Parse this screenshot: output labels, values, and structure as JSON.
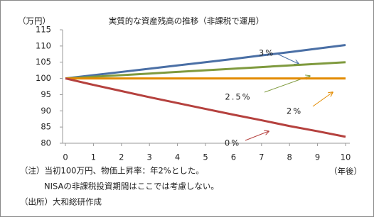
{
  "chart_data": {
    "type": "line",
    "title": "実質的な資産残高の推移（非課税で運用）",
    "y_label": "（万円）",
    "x_label": "（年後）",
    "x": [
      0,
      1,
      2,
      3,
      4,
      5,
      6,
      7,
      8,
      9,
      10
    ],
    "xlim": [
      0,
      10
    ],
    "xticks": [
      0,
      1,
      2,
      3,
      4,
      5,
      6,
      7,
      8,
      9,
      10
    ],
    "ylim": [
      80,
      115
    ],
    "yticks": [
      80,
      85,
      90,
      95,
      100,
      105,
      110,
      115
    ],
    "series": [
      {
        "name": "3%",
        "color": "#4a6fa5",
        "label_color": "#4f86c6",
        "values": [
          100,
          101.0,
          102.0,
          103.0,
          104.0,
          105.0,
          106.0,
          107.1,
          108.1,
          109.2,
          110.3
        ]
      },
      {
        "name": "2.5%",
        "color": "#7f9a3e",
        "label_color": "#333333",
        "values": [
          100,
          100.5,
          101.0,
          101.5,
          102.0,
          102.5,
          103.0,
          103.5,
          104.0,
          104.5,
          105.0
        ]
      },
      {
        "name": "2%",
        "color": "#e38b00",
        "label_color": "#b36b00",
        "values": [
          100,
          100,
          100,
          100,
          100,
          100,
          100,
          100,
          100,
          100,
          100
        ]
      },
      {
        "name": "0%",
        "color": "#b5413e",
        "label_color": "#b5413e",
        "values": [
          100,
          98.0,
          96.1,
          94.2,
          92.4,
          90.6,
          88.8,
          87.1,
          85.3,
          83.7,
          82.0
        ]
      }
    ],
    "notes": [
      "（注）当初100万円、物価上昇率：年2%とした。",
      "NISAの非課税投資期間はここでは考慮しない。",
      "（出所）大和総研作成"
    ]
  }
}
